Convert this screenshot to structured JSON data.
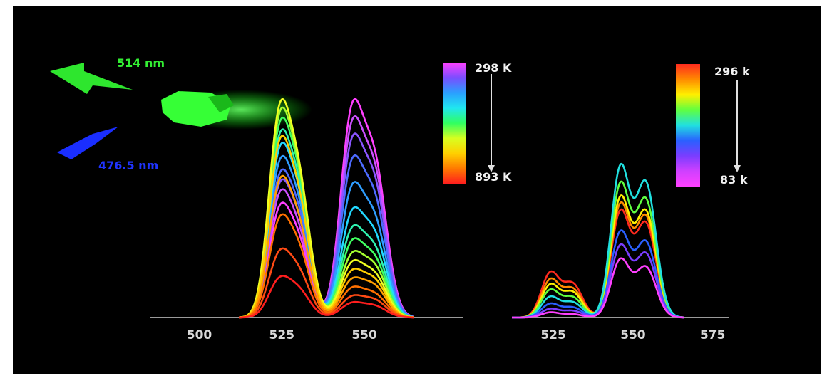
{
  "chart_data": [
    {
      "type": "line",
      "panel": "left",
      "xlim": [
        485,
        580
      ],
      "x_ticks": [
        500,
        525,
        550
      ],
      "temperature_scale": {
        "top_label": "298 K",
        "bottom_label": "893 K",
        "colors": [
          "#ff40ff",
          "#7a4dff",
          "#2aa0ff",
          "#20e6f0",
          "#30ff60",
          "#d8ff20",
          "#ffd000",
          "#ff7a00",
          "#ff1e1e"
        ]
      },
      "peaks": {
        "green_band_x": [
          524,
          530
        ],
        "red_band_x": [
          546,
          553
        ]
      },
      "series": [
        {
          "color": "#ff40ff",
          "green": [
            0.5,
            0.38
          ],
          "red": [
            1.0,
            0.8
          ]
        },
        {
          "color": "#cc50ff",
          "green": [
            0.56,
            0.42
          ],
          "red": [
            0.92,
            0.74
          ]
        },
        {
          "color": "#8a55ff",
          "green": [
            0.6,
            0.46
          ],
          "red": [
            0.84,
            0.68
          ]
        },
        {
          "color": "#4d6bff",
          "green": [
            0.64,
            0.5
          ],
          "red": [
            0.74,
            0.6
          ]
        },
        {
          "color": "#2f9dff",
          "green": [
            0.7,
            0.54
          ],
          "red": [
            0.62,
            0.5
          ]
        },
        {
          "color": "#22d8ff",
          "green": [
            0.76,
            0.58
          ],
          "red": [
            0.5,
            0.42
          ]
        },
        {
          "color": "#2ff2b0",
          "green": [
            0.82,
            0.62
          ],
          "red": [
            0.42,
            0.35
          ]
        },
        {
          "color": "#40ff60",
          "green": [
            0.87,
            0.66
          ],
          "red": [
            0.36,
            0.3
          ]
        },
        {
          "color": "#a6ff30",
          "green": [
            0.92,
            0.68
          ],
          "red": [
            0.3,
            0.26
          ]
        },
        {
          "color": "#f0ff20",
          "green": [
            0.96,
            0.7
          ],
          "red": [
            0.26,
            0.22
          ]
        },
        {
          "color": "#ffd000",
          "green": [
            0.8,
            0.58
          ],
          "red": [
            0.22,
            0.19
          ]
        },
        {
          "color": "#ffa000",
          "green": [
            0.62,
            0.46
          ],
          "red": [
            0.18,
            0.16
          ]
        },
        {
          "color": "#ff7000",
          "green": [
            0.45,
            0.34
          ],
          "red": [
            0.14,
            0.12
          ]
        },
        {
          "color": "#ff4a14",
          "green": [
            0.3,
            0.23
          ],
          "red": [
            0.1,
            0.09
          ]
        },
        {
          "color": "#ff1e1e",
          "green": [
            0.18,
            0.14
          ],
          "red": [
            0.07,
            0.06
          ]
        }
      ]
    },
    {
      "type": "line",
      "panel": "right",
      "xlim": [
        512,
        580
      ],
      "x_ticks": [
        525,
        550,
        575
      ],
      "temperature_scale": {
        "top_label": "296 k",
        "bottom_label": "83 k",
        "colors": [
          "#ff2a1e",
          "#ff8a00",
          "#fff000",
          "#60ff40",
          "#20e0e0",
          "#2a60ff",
          "#7a3dff",
          "#d040ff",
          "#ff40ff"
        ]
      },
      "peaks": {
        "green_band_x": [
          524,
          531
        ],
        "red_band_x": [
          546,
          554
        ]
      },
      "series": [
        {
          "color": "#ff2a1e",
          "green": [
            0.26,
            0.2
          ],
          "red": [
            0.62,
            0.56
          ]
        },
        {
          "color": "#ff8a00",
          "green": [
            0.22,
            0.17
          ],
          "red": [
            0.66,
            0.6
          ]
        },
        {
          "color": "#fff000",
          "green": [
            0.19,
            0.15
          ],
          "red": [
            0.7,
            0.63
          ]
        },
        {
          "color": "#60ff40",
          "green": [
            0.16,
            0.12
          ],
          "red": [
            0.78,
            0.7
          ]
        },
        {
          "color": "#20e0e0",
          "green": [
            0.12,
            0.09
          ],
          "red": [
            0.88,
            0.8
          ]
        },
        {
          "color": "#2a60ff",
          "green": [
            0.08,
            0.06
          ],
          "red": [
            0.5,
            0.45
          ]
        },
        {
          "color": "#7a3dff",
          "green": [
            0.05,
            0.04
          ],
          "red": [
            0.42,
            0.38
          ]
        },
        {
          "color": "#ff40ff",
          "green": [
            0.03,
            0.02
          ],
          "red": [
            0.34,
            0.3
          ]
        }
      ]
    }
  ],
  "laser_labels": {
    "green": {
      "text": "514 nm",
      "color": "#33ee33"
    },
    "blue": {
      "text": "476.5 nm",
      "color": "#1f34ff"
    }
  }
}
